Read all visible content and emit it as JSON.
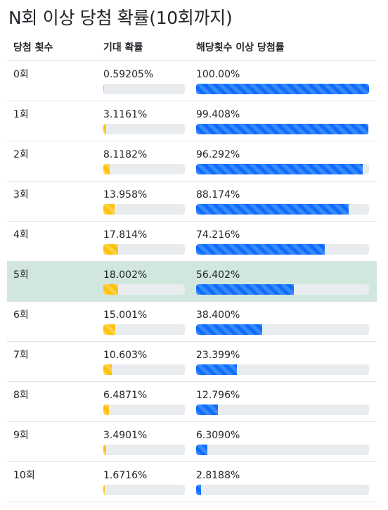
{
  "title": "N회 이상 당첨 확률(10회까지)",
  "headers": {
    "count": "당첨 횟수",
    "expected": "기대 확률",
    "cumulative": "해당횟수 이상 당첨률"
  },
  "colors": {
    "expected_bar": "#ffc107",
    "cumulative_bar": "#0d6efd",
    "highlight_row": "#d1e7dd",
    "bar_track": "#e9ecef"
  },
  "highlighted_row": "5회",
  "rows": [
    {
      "count": "0회",
      "expected": "0.59205%",
      "expected_value": 0.59205,
      "cumulative": "100.00%",
      "cumulative_value": 100.0
    },
    {
      "count": "1회",
      "expected": "3.1161%",
      "expected_value": 3.1161,
      "cumulative": "99.408%",
      "cumulative_value": 99.408
    },
    {
      "count": "2회",
      "expected": "8.1182%",
      "expected_value": 8.1182,
      "cumulative": "96.292%",
      "cumulative_value": 96.292
    },
    {
      "count": "3회",
      "expected": "13.958%",
      "expected_value": 13.958,
      "cumulative": "88.174%",
      "cumulative_value": 88.174
    },
    {
      "count": "4회",
      "expected": "17.814%",
      "expected_value": 17.814,
      "cumulative": "74.216%",
      "cumulative_value": 74.216
    },
    {
      "count": "5회",
      "expected": "18.002%",
      "expected_value": 18.002,
      "cumulative": "56.402%",
      "cumulative_value": 56.402
    },
    {
      "count": "6회",
      "expected": "15.001%",
      "expected_value": 15.001,
      "cumulative": "38.400%",
      "cumulative_value": 38.4
    },
    {
      "count": "7회",
      "expected": "10.603%",
      "expected_value": 10.603,
      "cumulative": "23.399%",
      "cumulative_value": 23.399
    },
    {
      "count": "8회",
      "expected": "6.4871%",
      "expected_value": 6.4871,
      "cumulative": "12.796%",
      "cumulative_value": 12.796
    },
    {
      "count": "9회",
      "expected": "3.4901%",
      "expected_value": 3.4901,
      "cumulative": "6.3090%",
      "cumulative_value": 6.309
    },
    {
      "count": "10회",
      "expected": "1.6716%",
      "expected_value": 1.6716,
      "cumulative": "2.8188%",
      "cumulative_value": 2.8188
    }
  ]
}
